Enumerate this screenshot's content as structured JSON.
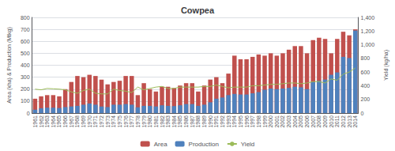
{
  "chart_data": {
    "type": "bar",
    "title": "Cowpea",
    "ylabel": "Area (kha) & Production (Mtkg)",
    "y2label": "Yield (kg/ha)",
    "categories": [
      "1961",
      "1962",
      "1963",
      "1964",
      "1965",
      "1966",
      "1967",
      "1968",
      "1969",
      "1970",
      "1971",
      "1972",
      "1973",
      "1974",
      "1975",
      "1976",
      "1977",
      "1978",
      "1979",
      "1980",
      "1981",
      "1982",
      "1983",
      "1984",
      "1985",
      "1986",
      "1987",
      "1988",
      "1989",
      "1990",
      "1991",
      "1992",
      "1993",
      "1994",
      "1995",
      "1996",
      "1997",
      "1998",
      "1999",
      "2000",
      "2001",
      "2002",
      "2003",
      "2004",
      "2005",
      "2006",
      "2007",
      "2008",
      "2009",
      "2010",
      "2011",
      "2012",
      "2013",
      "2014"
    ],
    "series": [
      {
        "name": "Area",
        "type": "bar",
        "color": "#c0504d",
        "values": [
          120,
          140,
          150,
          150,
          140,
          200,
          260,
          310,
          300,
          320,
          310,
          280,
          240,
          260,
          270,
          310,
          310,
          150,
          250,
          200,
          180,
          220,
          220,
          210,
          230,
          250,
          250,
          180,
          230,
          280,
          300,
          250,
          330,
          480,
          450,
          450,
          470,
          490,
          480,
          500,
          480,
          500,
          530,
          560,
          560,
          500,
          610,
          630,
          620,
          500,
          620,
          680,
          650,
          700
        ]
      },
      {
        "name": "Production",
        "type": "bar",
        "color": "#4f81bd",
        "values": [
          28,
          40,
          45,
          45,
          42,
          50,
          55,
          60,
          70,
          80,
          70,
          55,
          50,
          70,
          70,
          75,
          70,
          48,
          60,
          60,
          55,
          65,
          60,
          58,
          65,
          75,
          75,
          60,
          70,
          90,
          120,
          130,
          150,
          160,
          155,
          155,
          165,
          175,
          195,
          205,
          200,
          205,
          210,
          220,
          215,
          200,
          260,
          270,
          280,
          320,
          340,
          470,
          460,
          690
        ]
      },
      {
        "name": "Yield",
        "type": "line",
        "axis": "y2",
        "color": "#9bbb59",
        "values": [
          350,
          340,
          360,
          355,
          350,
          340,
          310,
          290,
          330,
          350,
          290,
          280,
          280,
          350,
          330,
          320,
          300,
          380,
          340,
          360,
          380,
          390,
          360,
          360,
          380,
          380,
          380,
          380,
          390,
          390,
          410,
          390,
          370,
          380,
          380,
          380,
          400,
          400,
          410,
          420,
          420,
          430,
          440,
          440,
          430,
          440,
          460,
          460,
          440,
          500,
          480,
          570,
          600,
          660
        ]
      }
    ],
    "ylim": [
      0,
      800
    ],
    "yticks": [
      0,
      100,
      200,
      300,
      400,
      500,
      600,
      700,
      800
    ],
    "y2lim": [
      0,
      1400
    ],
    "y2ticks": [
      0,
      200,
      400,
      600,
      800,
      1000,
      1200,
      1400
    ],
    "grid": true,
    "legend": "bottom"
  }
}
